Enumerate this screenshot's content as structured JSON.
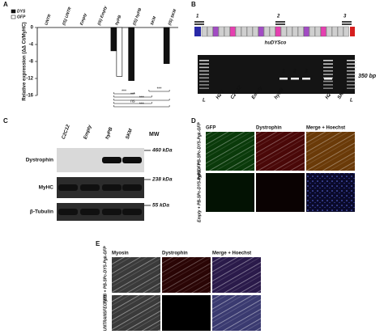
{
  "chart_data": {
    "type": "bar",
    "panel": "A",
    "y_label": "Relative expression (ΔΔ Ct/MyHC)",
    "categories": [
      "UNTR",
      "(IS) UNTR",
      "Empty",
      "(IS) Empty",
      "hyPB",
      "(IS) hyPB",
      "SKM",
      "(IS) SKM"
    ],
    "series": [
      {
        "name": "DYS",
        "color": "#111111",
        "values": [
          0,
          0,
          0,
          0,
          -5.5,
          -12.5,
          0,
          -8.5
        ]
      },
      {
        "name": "GFP",
        "color": "#ffffff",
        "values": [
          0,
          0,
          0,
          0,
          -11.5,
          0,
          0,
          0
        ]
      }
    ],
    "ylim": [
      -16,
      0
    ],
    "yticks": [
      0,
      -4,
      -8,
      -12,
      -16
    ],
    "annotations": [
      "***",
      "***",
      "***",
      "ns",
      "***",
      "***"
    ]
  },
  "panel_b": {
    "label": "B",
    "construct": "huDYSco",
    "primers": [
      "1",
      "2",
      "3"
    ],
    "lanes": [
      "L",
      "H2O",
      "C2C12",
      "Empty",
      "hyPB",
      "H2O",
      "SKM",
      "L"
    ],
    "band_numbers": [
      "1",
      "2",
      "3"
    ],
    "size": "350 bp"
  },
  "panel_c": {
    "label": "C",
    "lanes": [
      "C2C12",
      "Empty",
      "hyPB",
      "SKM"
    ],
    "mw_header": "MW",
    "rows": [
      {
        "name": "Dystrophin",
        "mw": "460 kDa"
      },
      {
        "name": "MyHC",
        "mw": "238 kDa"
      },
      {
        "name": "β-Tubulin",
        "mw": "55 kDa"
      }
    ]
  },
  "panel_d": {
    "label": "D",
    "columns": [
      "GFP",
      "Dystrophin",
      "Merge + Hoechst"
    ],
    "rows": [
      "hyPB + PB-SPc-DYS-Pgk-GFP",
      "Empty + PB-SPc-DYS-Pgk-GFP"
    ]
  },
  "panel_e": {
    "label": "E",
    "columns": [
      "Myosin",
      "Dystrophin",
      "Merge + Hoechst"
    ],
    "rows": [
      "hyPB + PB-SPc-DYS-Pgk-GFP",
      "UNTRANSFECTED"
    ]
  }
}
